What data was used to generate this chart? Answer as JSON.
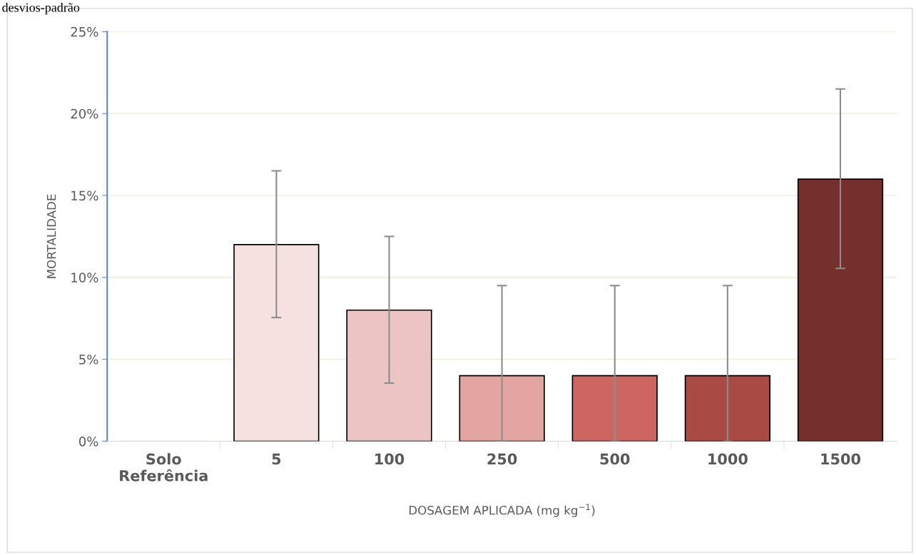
{
  "chart_data": {
    "type": "bar",
    "xlabel": "DOSAGEM APLICADA (mg kg$^{−1}$)",
    "ylabel": "MORTALIDADE",
    "annotations": [
      "desvios-padrão"
    ],
    "categories": [
      "Solo\nReferência",
      "5",
      "100",
      "250",
      "500",
      "1000",
      "1500"
    ],
    "values": [
      0,
      12,
      8,
      4,
      4,
      4,
      16
    ],
    "colors": [
      "#d9d9d9",
      "#f4e1e0",
      "#ebc4c3",
      "#e2a5a2",
      "#cd6660",
      "#a94a44",
      "#76302c"
    ],
    "errors": [
      null,
      [
        7.55,
        16.5
      ],
      [
        3.55,
        12.5
      ],
      [
        0,
        9.5
      ],
      [
        0,
        9.5
      ],
      [
        0,
        9.5
      ],
      [
        10.55,
        21.5
      ]
    ],
    "ylim": [
      0,
      25
    ],
    "yticks": [
      {
        "value": 0,
        "label": "0%"
      },
      {
        "value": 5,
        "label": "5%"
      },
      {
        "value": 10,
        "label": "10%"
      },
      {
        "value": 15,
        "label": "15%"
      },
      {
        "value": 20,
        "label": "20%"
      },
      {
        "value": 25,
        "label": "25%"
      }
    ],
    "grid": "y",
    "legend": false
  }
}
